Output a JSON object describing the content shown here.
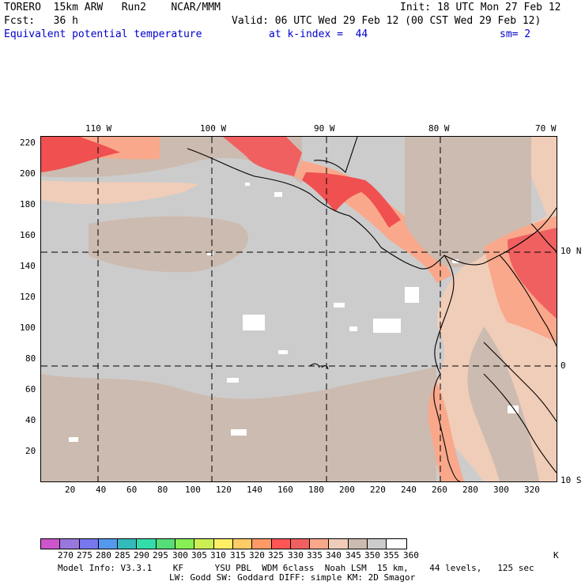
{
  "header": {
    "model": "TORERO  15km ARW   Run2    NCAR/MMM",
    "init": "Init: 18 UTC Mon 27 Feb 12",
    "fcst": "Fcst:   36 h",
    "valid": "Valid: 06 UTC Wed 29 Feb 12 (00 CST Wed 29 Feb 12)",
    "field": "Equivalent potential temperature",
    "level": "at k-index =  44",
    "smooth": "sm= 2"
  },
  "map": {
    "top_lon_labels": [
      "110 W",
      "100 W",
      "90 W",
      "80 W",
      "70 W"
    ],
    "right_lat_labels": [
      "10 N",
      "0",
      "10 S"
    ],
    "left_grid_labels": [
      "220",
      "200",
      "180",
      "160",
      "140",
      "120",
      "100",
      "80",
      "60",
      "40",
      "20"
    ],
    "bottom_grid_labels": [
      "20",
      "40",
      "60",
      "80",
      "100",
      "120",
      "140",
      "160",
      "180",
      "200",
      "220",
      "240",
      "260",
      "280",
      "300",
      "320"
    ],
    "colors": {
      "ocean_gray": "#cccccc",
      "warm_tan": "#ccbbb0",
      "peach": "#f0cdb8",
      "salmon": "#f9a88c",
      "red": "#f05050",
      "hot_pink": "#f06060",
      "white": "#ffffff"
    }
  },
  "colorbar": {
    "labels": [
      "270",
      "275",
      "280",
      "285",
      "290",
      "295",
      "300",
      "305",
      "310",
      "315",
      "320",
      "325",
      "330",
      "335",
      "340",
      "345",
      "350",
      "355",
      "360",
      "K"
    ],
    "colors": [
      "#cc55cc",
      "#9977dd",
      "#7777ee",
      "#5599ee",
      "#33bbbb",
      "#33ddaa",
      "#55dd77",
      "#88ee55",
      "#ccee55",
      "#ffee66",
      "#ffcc66",
      "#ff9966",
      "#ff5555",
      "#f06060",
      "#f9a88c",
      "#f0cdb8",
      "#ccbbb0",
      "#cccccc",
      "#ffffff"
    ]
  },
  "footer": {
    "line1": "Model Info: V3.3.1    KF      YSU PBL  WDM 6class  Noah LSM  15 km,    44 levels,   125 sec",
    "line2": "LW: Godd SW: Goddard DIFF: simple KM: 2D Smagor"
  }
}
